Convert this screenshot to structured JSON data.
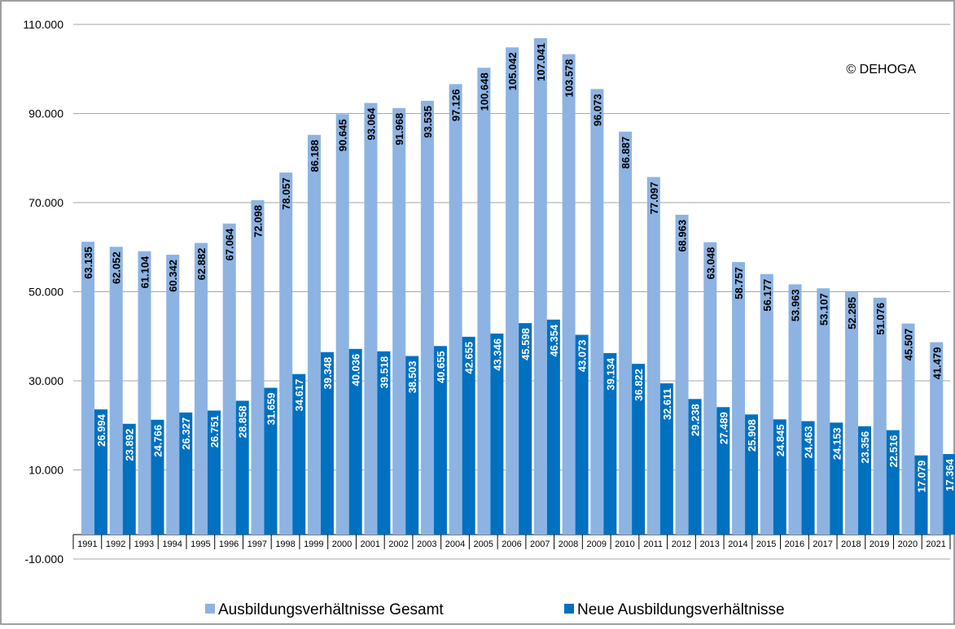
{
  "colors": {
    "gesamt": "#8db3e2",
    "neue": "#0070c0",
    "gesamt_label": "#000000",
    "neue_label": "#ffffff",
    "grid": "#a6a6a6",
    "border": "#808080"
  },
  "copyright": "© DEHOGA",
  "chart_data": {
    "type": "bar",
    "title": "",
    "xlabel": "",
    "ylabel": "",
    "ylim": [
      -10000,
      110000
    ],
    "yticks": [
      -10000,
      10000,
      30000,
      50000,
      70000,
      90000,
      110000
    ],
    "ytick_labels": [
      "-10.000",
      "10.000",
      "30.000",
      "50.000",
      "70.000",
      "90.000",
      "110.000"
    ],
    "grid": true,
    "legend": "bottom",
    "categories": [
      "1991",
      "1992",
      "1993",
      "1994",
      "1995",
      "1996",
      "1997",
      "1998",
      "1999",
      "2000",
      "2001",
      "2002",
      "2003",
      "2004",
      "2005",
      "2006",
      "2007",
      "2008",
      "2009",
      "2010",
      "2011",
      "2012",
      "2013",
      "2014",
      "2015",
      "2016",
      "2017",
      "2018",
      "2019",
      "2020",
      "2021"
    ],
    "series": [
      {
        "name": "Ausbildungsverhältnisse Gesamt",
        "values": [
          63135,
          62052,
          61104,
          60342,
          62882,
          67064,
          72098,
          78057,
          86188,
          90645,
          93064,
          91968,
          93535,
          97126,
          100648,
          105042,
          107041,
          103578,
          96073,
          86887,
          77097,
          68963,
          63048,
          58757,
          56177,
          53963,
          53107,
          52285,
          51076,
          45507,
          41479
        ],
        "labels": [
          "63.135",
          "62.052",
          "61.104",
          "60.342",
          "62.882",
          "67.064",
          "72.098",
          "78.057",
          "86.188",
          "90.645",
          "93.064",
          "91.968",
          "93.535",
          "97.126",
          "100.648",
          "105.042",
          "107.041",
          "103.578",
          "96.073",
          "86.887",
          "77.097",
          "68.963",
          "63.048",
          "58.757",
          "56.177",
          "53.963",
          "53.107",
          "52.285",
          "51.076",
          "45.507",
          "41.479"
        ]
      },
      {
        "name": "Neue Ausbildungsverhältnisse",
        "values": [
          26994,
          23892,
          24766,
          26327,
          26751,
          28858,
          31659,
          34617,
          39348,
          40036,
          39518,
          38503,
          40655,
          42655,
          43346,
          45598,
          46354,
          43073,
          39134,
          36822,
          32611,
          29238,
          27489,
          25908,
          24845,
          24463,
          24153,
          23356,
          22516,
          17079,
          17364
        ],
        "labels": [
          "26.994",
          "23.892",
          "24.766",
          "26.327",
          "26.751",
          "28.858",
          "31.659",
          "34.617",
          "39.348",
          "40.036",
          "39.518",
          "38.503",
          "40.655",
          "42.655",
          "43.346",
          "45.598",
          "46.354",
          "43.073",
          "39.134",
          "36.822",
          "32.611",
          "29.238",
          "27.489",
          "25.908",
          "24.845",
          "24.463",
          "24.153",
          "23.356",
          "22.516",
          "17.079",
          "17.364"
        ]
      }
    ]
  }
}
